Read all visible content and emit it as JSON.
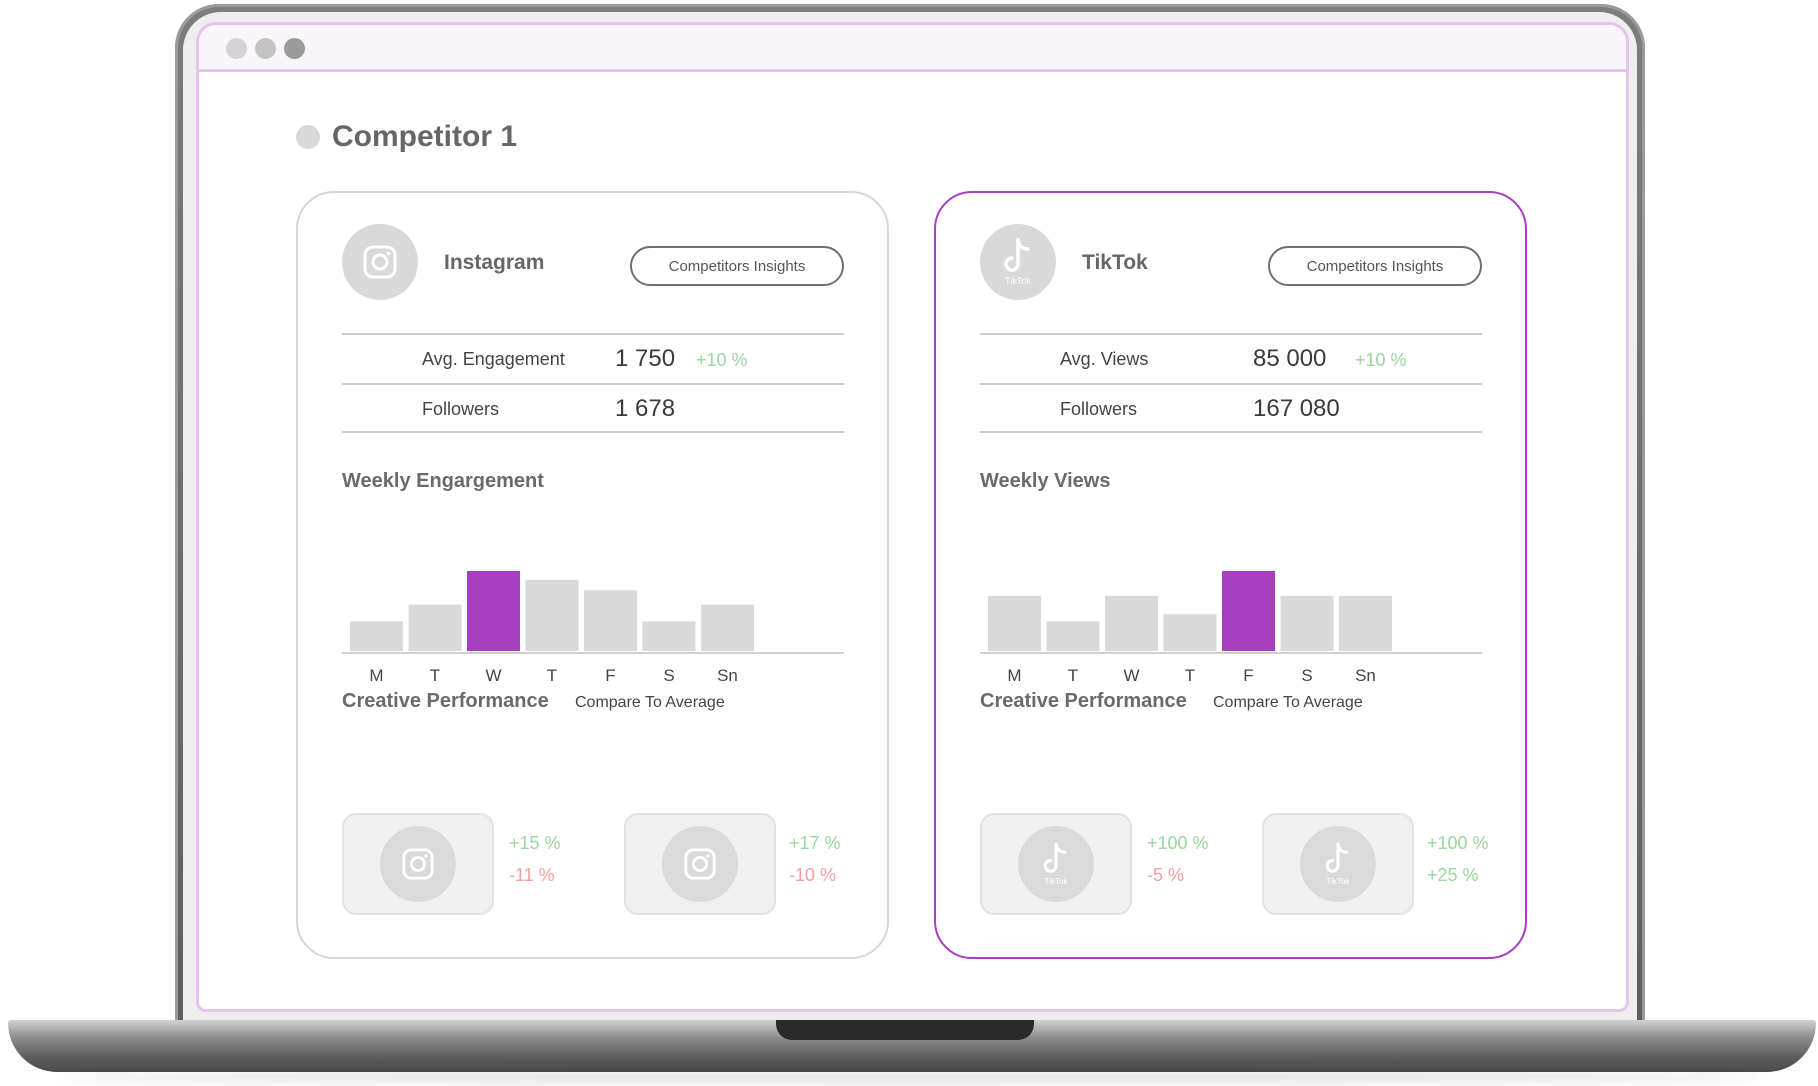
{
  "page": {
    "competitor_title": "Competitor 1"
  },
  "colors": {
    "accent": "#a83ec0",
    "bar_default": "#d9d9d9",
    "positive": "#9ad69d",
    "negative": "#f2a0a0"
  },
  "cards": {
    "instagram": {
      "platform": "Instagram",
      "icon": "instagram-icon",
      "insights_button": "Competitors Insights",
      "stats": [
        {
          "label": "Avg. Engagement",
          "value": "1 750",
          "delta": "+10 %"
        },
        {
          "label": "Followers",
          "value": "1 678"
        }
      ],
      "weekly_title": "Weekly Engargement",
      "creative_title": "Creative Performance",
      "compare_label": "Compare To Average",
      "creatives": [
        {
          "icon": "instagram-icon",
          "up": "+15 %",
          "down": "-11 %"
        },
        {
          "icon": "instagram-icon",
          "up": "+17 %",
          "down": "-10 %"
        }
      ]
    },
    "tiktok": {
      "platform": "TikTok",
      "icon": "tiktok-icon",
      "logo_caption": "TikTok",
      "insights_button": "Competitors Insights",
      "stats": [
        {
          "label": "Avg. Views",
          "value": "85 000",
          "delta": "+10 %"
        },
        {
          "label": "Followers",
          "value": "167 080"
        }
      ],
      "weekly_title": "Weekly Views",
      "creative_title": "Creative Performance",
      "compare_label": "Compare To Average",
      "creatives": [
        {
          "icon": "tiktok-icon",
          "caption": "TikTok",
          "up": "+100 %",
          "down": "-5 %"
        },
        {
          "icon": "tiktok-icon",
          "caption": "TikTok",
          "up": "+100 %",
          "up2": "+25 %"
        }
      ]
    }
  },
  "chart_data": [
    {
      "type": "bar",
      "title": "Weekly Engargement",
      "categories": [
        "M",
        "T",
        "W",
        "T",
        "F",
        "S",
        "Sn"
      ],
      "values": [
        37,
        58,
        100,
        89,
        76,
        37,
        58
      ],
      "highlight_index": 2,
      "ylim": [
        0,
        100
      ],
      "xlabel": "",
      "ylabel": ""
    },
    {
      "type": "bar",
      "title": "Weekly Views",
      "categories": [
        "M",
        "T",
        "W",
        "T",
        "F",
        "S",
        "Sn"
      ],
      "values": [
        69,
        37,
        69,
        46,
        100,
        69,
        69
      ],
      "highlight_index": 4,
      "ylim": [
        0,
        100
      ],
      "xlabel": "",
      "ylabel": ""
    }
  ]
}
